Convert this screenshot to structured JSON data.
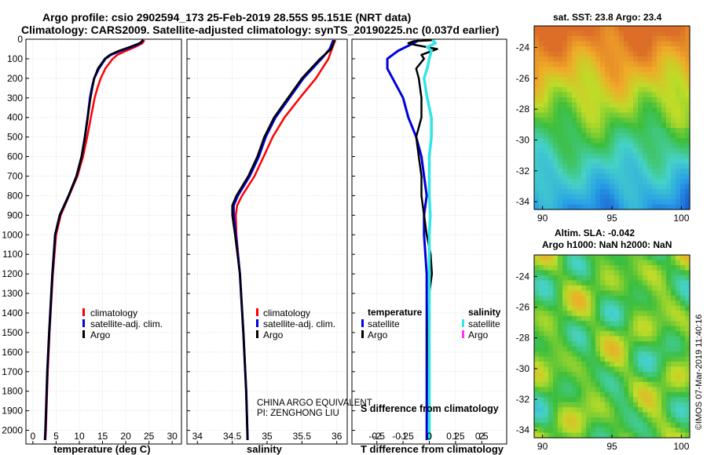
{
  "header": {
    "title_line1": "Argo profile: csio 2902594_173 25-Feb-2019 28.55S 95.151E (NRT data)",
    "title_line2": "Climatology: CARS2009. Satellite-adjusted climatology: synTS_20190225.nc (0.037d earlier)"
  },
  "colors": {
    "climatology": "#ff0000",
    "satellite": "#0000dd",
    "argo": "#000000",
    "salinity_satellite": "#33e5e5",
    "salinity_argo": "#ff33ff"
  },
  "attribution": {
    "line1": "CHINA ARGO EQUIVALENT",
    "line2": "PI: ZENGHONG LIU"
  },
  "side_stamp": "©IMOS 07-Mar-2019 11:40:16",
  "chart_data": [
    {
      "type": "line",
      "name": "temperature-profile",
      "xlabel": "temperature (deg C)",
      "ylabel": "depth (m)",
      "xlim": [
        -1.5,
        32
      ],
      "ylim": [
        2070,
        0
      ],
      "xticks": [
        "0",
        "5",
        "10",
        "15",
        "20",
        "25",
        "30"
      ],
      "yticks": [
        "0",
        "100",
        "200",
        "300",
        "400",
        "500",
        "600",
        "700",
        "800",
        "900",
        "1000",
        "1100",
        "1200",
        "1300",
        "1400",
        "1500",
        "1600",
        "1700",
        "1800",
        "1900",
        "2000"
      ],
      "legend": [
        "climatology",
        "satellite-adj. clim.",
        "Argo"
      ],
      "series": [
        {
          "name": "climatology",
          "depth": [
            5,
            20,
            40,
            60,
            80,
            100,
            150,
            200,
            250,
            300,
            400,
            500,
            600,
            700,
            800,
            900,
            1000,
            1200,
            1500,
            1700,
            2000,
            2050
          ],
          "values": [
            24.0,
            23.6,
            22.0,
            20.0,
            18.2,
            17.2,
            15.6,
            14.6,
            13.9,
            13.3,
            12.5,
            11.7,
            10.8,
            9.6,
            7.8,
            6.0,
            5.0,
            4.3,
            3.6,
            3.2,
            2.8,
            2.7
          ]
        },
        {
          "name": "satellite-adj. clim.",
          "depth": [
            5,
            20,
            40,
            60,
            80,
            100,
            150,
            200,
            250,
            300,
            400,
            500,
            600,
            700,
            800,
            900,
            1000,
            1200,
            1500,
            1700,
            2000,
            2050
          ],
          "values": [
            23.7,
            23.2,
            21.2,
            18.8,
            16.8,
            15.6,
            14.2,
            13.2,
            12.7,
            12.3,
            11.8,
            11.2,
            10.5,
            9.4,
            7.7,
            5.8,
            4.8,
            4.2,
            3.5,
            3.1,
            2.7,
            2.6
          ]
        },
        {
          "name": "Argo",
          "depth": [
            5,
            20,
            40,
            60,
            80,
            100,
            150,
            200,
            250,
            300,
            400,
            500,
            600,
            700,
            800,
            900,
            1000,
            1200,
            1500,
            1700,
            2000,
            2050
          ],
          "values": [
            23.8,
            23.0,
            20.8,
            18.4,
            16.6,
            15.5,
            14.0,
            13.2,
            12.8,
            12.4,
            11.8,
            11.2,
            10.5,
            9.4,
            7.7,
            5.8,
            4.8,
            4.2,
            3.5,
            3.1,
            2.7,
            2.6
          ]
        }
      ]
    },
    {
      "type": "line",
      "name": "salinity-profile",
      "xlabel": "salinity",
      "xlim": [
        33.85,
        36.15
      ],
      "ylim": [
        2070,
        0
      ],
      "xticks": [
        "34",
        "34.5",
        "35",
        "35.5",
        "36"
      ],
      "legend": [
        "climatology",
        "satellite-adj. clim.",
        "Argo"
      ],
      "series": [
        {
          "name": "climatology",
          "depth": [
            5,
            50,
            100,
            200,
            300,
            400,
            500,
            600,
            700,
            800,
            850,
            900,
            1000,
            1200,
            1500,
            1800,
            2050
          ],
          "values": [
            35.98,
            35.93,
            35.88,
            35.7,
            35.47,
            35.25,
            35.08,
            34.95,
            34.82,
            34.64,
            34.57,
            34.55,
            34.56,
            34.61,
            34.66,
            34.7,
            34.72
          ]
        },
        {
          "name": "satellite-adj. clim.",
          "depth": [
            5,
            50,
            100,
            200,
            300,
            400,
            500,
            600,
            700,
            800,
            850,
            900,
            1000,
            1200,
            1500,
            1800,
            2050
          ],
          "values": [
            35.95,
            35.9,
            35.78,
            35.52,
            35.32,
            35.12,
            34.98,
            34.88,
            34.75,
            34.58,
            34.52,
            34.52,
            34.55,
            34.61,
            34.66,
            34.7,
            34.72
          ]
        },
        {
          "name": "Argo",
          "depth": [
            5,
            50,
            100,
            200,
            300,
            400,
            500,
            600,
            700,
            800,
            850,
            900,
            1000,
            1200,
            1500,
            1800,
            2050
          ],
          "values": [
            35.97,
            35.92,
            35.76,
            35.5,
            35.3,
            35.1,
            34.96,
            34.86,
            34.73,
            34.56,
            34.5,
            34.5,
            34.54,
            34.61,
            34.66,
            34.7,
            34.72
          ]
        }
      ]
    },
    {
      "type": "line",
      "name": "difference-profile",
      "xlabel": "T difference from climatology",
      "xlabel_top": "S difference from climatology",
      "xlim": [
        -2.95,
        2.95
      ],
      "ylim": [
        2070,
        0
      ],
      "xticks": [
        "-2",
        "-1",
        "0",
        "1",
        "2"
      ],
      "xticks_top": [
        "-0.5",
        "-0.25",
        "0",
        "0.25",
        "0.5"
      ],
      "legend_temperature_title": "temperature",
      "legend_salinity_title": "salinity",
      "legend_temperature": [
        "satellite",
        "Argo"
      ],
      "legend_salinity": [
        "satellite",
        "Argo"
      ],
      "series": [
        {
          "name": "temperature satellite",
          "depth": [
            5,
            20,
            40,
            60,
            80,
            100,
            150,
            200,
            300,
            400,
            500,
            600,
            700,
            800,
            900,
            1000,
            1200,
            1500,
            2050
          ],
          "values": [
            -0.4,
            -0.6,
            -0.9,
            -1.2,
            -1.4,
            -1.6,
            -1.6,
            -1.4,
            -1.0,
            -0.8,
            -0.5,
            -0.3,
            -0.2,
            -0.1,
            -0.2,
            -0.2,
            -0.1,
            -0.1,
            -0.1
          ]
        },
        {
          "name": "temperature Argo",
          "depth": [
            5,
            10,
            20,
            30,
            50,
            80,
            100,
            150,
            200,
            300,
            400,
            500,
            600,
            700,
            800,
            900,
            1000,
            1100,
            1200,
            1300,
            1500,
            2050
          ],
          "values": [
            0.1,
            -0.6,
            -0.8,
            -0.5,
            0.3,
            -0.3,
            -0.2,
            -0.5,
            -0.4,
            -0.3,
            -0.3,
            -0.5,
            -0.4,
            -0.3,
            -0.3,
            -0.2,
            -0.1,
            0.05,
            0.1,
            0.0,
            -0.05,
            0.0
          ]
        },
        {
          "name": "salinity satellite",
          "depth": [
            5,
            20,
            40,
            60,
            100,
            150,
            200,
            300,
            400,
            500,
            600,
            700,
            800,
            900,
            1000,
            1500,
            2050
          ],
          "values": [
            0.03,
            0.06,
            -0.02,
            0.02,
            0.0,
            -0.02,
            -0.05,
            -0.02,
            0.02,
            0.02,
            0.0,
            0.0,
            0.0,
            0.01,
            0.0,
            0.0,
            0.0
          ]
        }
      ]
    },
    {
      "type": "heatmap",
      "name": "sst-map",
      "title": "sat. SST: 23.8  Argo: 23.4",
      "xlim": [
        89.4,
        100.6
      ],
      "ylim": [
        -34.5,
        -22.6
      ],
      "xticks": [
        "90",
        "95",
        "100"
      ],
      "yticks": [
        "-24",
        "-26",
        "-28",
        "-30",
        "-32",
        "-34"
      ]
    },
    {
      "type": "heatmap",
      "name": "sla-map",
      "title_line1": "Altim. SLA: -0.042",
      "title_line2": "Argo h1000: NaN h2000: NaN",
      "xlim": [
        89.4,
        100.6
      ],
      "ylim": [
        -34.5,
        -22.6
      ],
      "xticks": [
        "90",
        "95",
        "100"
      ],
      "yticks": [
        "-24",
        "-26",
        "-28",
        "-30",
        "-32",
        "-34"
      ]
    }
  ]
}
